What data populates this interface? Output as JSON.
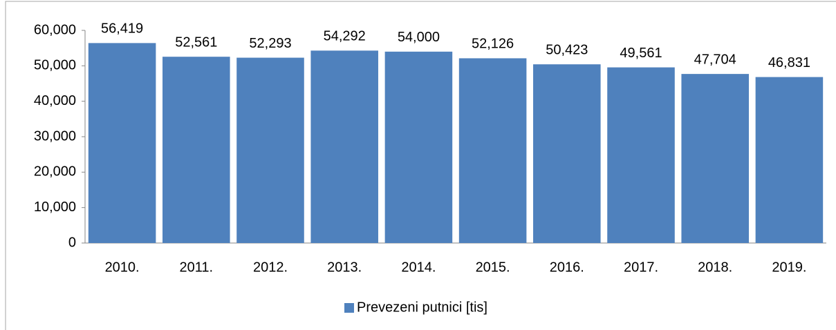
{
  "chart_data": {
    "type": "bar",
    "categories": [
      "2010.",
      "2011.",
      "2012.",
      "2013.",
      "2014.",
      "2015.",
      "2016.",
      "2017.",
      "2018.",
      "2019."
    ],
    "series": [
      {
        "name": "Prevezeni putnici [tis]",
        "color": "#4f81bd",
        "values": [
          56419,
          52561,
          52293,
          54292,
          54000,
          52126,
          50423,
          49561,
          47704,
          46831
        ],
        "value_labels": [
          "56,419",
          "52,561",
          "52,293",
          "54,292",
          "54,000",
          "52,126",
          "50,423",
          "49,561",
          "47,704",
          "46,831"
        ]
      }
    ],
    "ylim": [
      0,
      60000
    ],
    "yticks": [
      0,
      {
        "value": 10000,
        "label": "10,000"
      },
      {
        "value": 20000,
        "label": "20,000"
      },
      {
        "value": 30000,
        "label": "30,000"
      },
      {
        "value": 40000,
        "label": "40,000"
      },
      {
        "value": 50000,
        "label": "50,000"
      },
      {
        "value": 60000,
        "label": "60,000"
      }
    ],
    "grid": false,
    "legend": "bottom"
  }
}
